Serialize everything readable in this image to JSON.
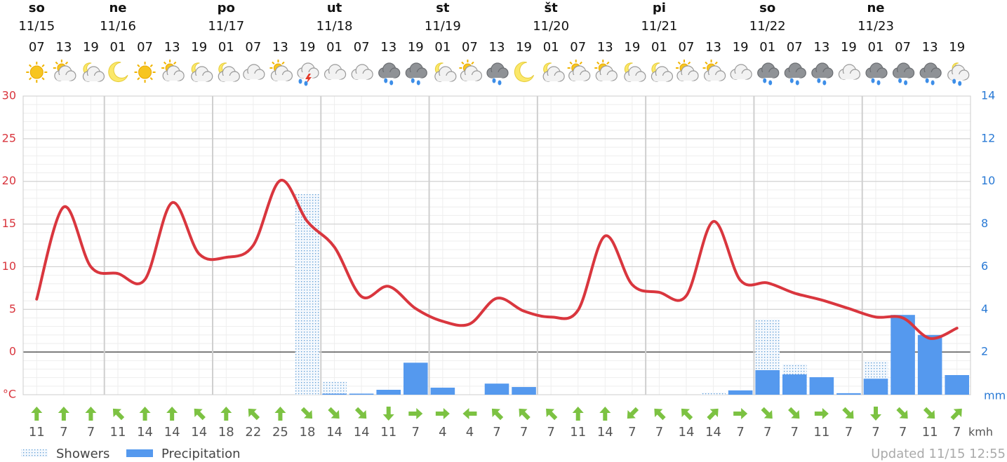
{
  "chart_data": {
    "type": "line",
    "days": [
      {
        "name": "so",
        "date": "11/15"
      },
      {
        "name": "ne",
        "date": "11/16"
      },
      {
        "name": "po",
        "date": "11/17"
      },
      {
        "name": "ut",
        "date": "11/18"
      },
      {
        "name": "st",
        "date": "11/19"
      },
      {
        "name": "št",
        "date": "11/20"
      },
      {
        "name": "pi",
        "date": "11/21"
      },
      {
        "name": "so",
        "date": "11/22"
      },
      {
        "name": "ne",
        "date": "11/23"
      }
    ],
    "categories": [
      "07",
      "13",
      "19",
      "01",
      "07",
      "13",
      "19",
      "01",
      "07",
      "13",
      "19",
      "01",
      "07",
      "13",
      "19",
      "01",
      "07",
      "13",
      "19",
      "01",
      "07",
      "13",
      "19",
      "01",
      "07",
      "13",
      "19",
      "01",
      "07",
      "13",
      "19",
      "01",
      "07",
      "13",
      "19"
    ],
    "icons": [
      "sun",
      "sun-cloud",
      "moon-cloud",
      "moon",
      "sun",
      "sun-cloud",
      "moon-cloud",
      "moon-cloud",
      "cloud",
      "sun-cloud",
      "storm",
      "cloud",
      "cloud",
      "rain",
      "rain",
      "moon-cloud",
      "sun-cloud",
      "rain",
      "moon",
      "moon-cloud",
      "sun-cloud",
      "sun-cloud",
      "moon-cloud",
      "moon-cloud",
      "sun-cloud",
      "sun-cloud",
      "cloud",
      "rain",
      "rain",
      "rain",
      "cloud",
      "rain",
      "rain",
      "rain",
      "moon-rain"
    ],
    "temperature": {
      "color": "#d9363e",
      "values": [
        6.2,
        17,
        10,
        9.2,
        8.5,
        17.5,
        11.5,
        11.1,
        12.5,
        20.1,
        15.3,
        12.3,
        6.5,
        7.7,
        5.1,
        3.6,
        3.3,
        6.3,
        4.8,
        4.1,
        4.9,
        13.6,
        7.9,
        7.0,
        6.6,
        15.3,
        8.4,
        8.1,
        6.9,
        6.1,
        5.1,
        4.1,
        4.0,
        1.6,
        2.8
      ]
    },
    "series": [
      {
        "name": "Showers",
        "color": "#5b9bd5",
        "pattern": "dots",
        "axis": "y2",
        "values": [
          0,
          0,
          0,
          0,
          0,
          0,
          0,
          0,
          0,
          0,
          9.4,
          0.62,
          0.05,
          0,
          0,
          0,
          0,
          0,
          0,
          0,
          0,
          0,
          0,
          0,
          0,
          0.1,
          0.23,
          3.54,
          1.44,
          0,
          0,
          1.57,
          0,
          0,
          0
        ]
      },
      {
        "name": "Precipitation",
        "color": "#5599ee",
        "axis": "y2",
        "values": [
          0,
          0,
          0,
          0,
          0,
          0,
          0,
          0,
          0,
          0,
          0,
          0.05,
          0.05,
          0.23,
          1.5,
          0.33,
          0,
          0.52,
          0.36,
          0,
          0,
          0,
          0,
          0,
          0,
          0,
          0.2,
          1.15,
          0.95,
          0.82,
          0.07,
          0.75,
          3.74,
          2.8,
          0.92
        ]
      }
    ],
    "wind": {
      "color": "#7cc242",
      "unit": "kmh",
      "directions": [
        0,
        0,
        0,
        315,
        0,
        0,
        315,
        0,
        315,
        0,
        135,
        135,
        135,
        180,
        90,
        90,
        270,
        315,
        315,
        315,
        0,
        0,
        225,
        315,
        315,
        45,
        90,
        135,
        135,
        90,
        135,
        180,
        135,
        135,
        45
      ],
      "speeds": [
        11,
        7,
        7,
        11,
        14,
        14,
        14,
        18,
        22,
        25,
        18,
        14,
        14,
        11,
        7,
        4,
        4,
        7,
        7,
        7,
        11,
        14,
        7,
        7,
        14,
        14,
        7,
        7,
        7,
        11,
        7,
        7,
        7,
        11,
        7
      ]
    },
    "ylim": [
      -5,
      30
    ],
    "yticks": [
      {
        "value": -5,
        "label": "°C"
      },
      0,
      5,
      10,
      15,
      20,
      25,
      30
    ],
    "y2lim": [
      0,
      14
    ],
    "y2ticks": [
      {
        "value": 0,
        "label": "mm"
      },
      2,
      4,
      6,
      8,
      10,
      12,
      14
    ],
    "grid": true,
    "updated": "Updated 11/15 12:55"
  }
}
